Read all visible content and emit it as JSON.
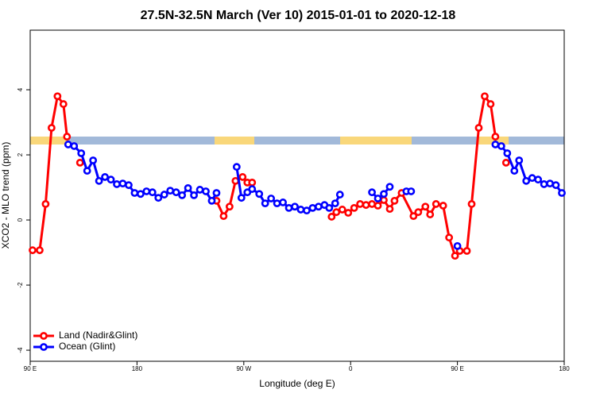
{
  "chart_data": {
    "type": "line",
    "title": "27.5N-32.5N March (Ver 10)   2015-01-01 to 2020-12-18",
    "x_label": "Longitude (deg E)",
    "y_label": "XCO2 - MLO trend (ppm)",
    "xlim": [
      90,
      540
    ],
    "xticks": [
      {
        "value": 90,
        "label": "90 E"
      },
      180,
      {
        "value": 270,
        "label": "90 W"
      },
      {
        "value": 360,
        "label": "0"
      },
      {
        "value": 450,
        "label": "90 E"
      },
      {
        "value": 540,
        "label": "180"
      }
    ],
    "ylim": [
      -4.34,
      5.83
    ],
    "yticks": [
      -4,
      -2,
      0,
      2,
      4
    ],
    "legend": "bottom-left",
    "series": [
      {
        "name": "Land (Nadir&Glint)",
        "color": "#ff0000",
        "x": [
          92,
          98,
          103,
          108,
          113,
          118,
          121,
          126,
          132,
          190,
          247,
          253,
          258,
          263,
          269,
          273,
          277,
          310,
          344,
          348,
          353,
          358,
          363,
          368,
          373,
          378,
          383,
          388,
          393,
          397,
          403,
          413,
          417,
          423,
          427,
          432,
          438,
          443,
          448,
          452,
          458,
          462,
          468,
          473,
          478,
          482,
          486,
          491
        ],
        "values": [
          -0.93,
          -0.93,
          0.49,
          2.83,
          3.8,
          3.56,
          2.56,
          null,
          1.76,
          null,
          0.59,
          0.12,
          0.41,
          1.2,
          1.32,
          1.15,
          1.15,
          null,
          0.1,
          0.24,
          0.32,
          0.22,
          0.37,
          0.49,
          0.46,
          0.49,
          0.44,
          0.61,
          0.34,
          0.59,
          0.83,
          0.12,
          0.24,
          0.41,
          0.17,
          0.49,
          0.44,
          -0.54,
          -1.1,
          -0.95,
          -0.95,
          0.49,
          2.83,
          3.8,
          3.56,
          2.56,
          null,
          1.76
        ]
      },
      {
        "name": "Ocean (Glint)",
        "color": "#0000ff",
        "x": [
          122,
          127,
          133,
          138,
          143,
          148,
          153,
          158,
          163,
          168,
          173,
          178,
          183,
          188,
          193,
          198,
          203,
          208,
          213,
          218,
          223,
          228,
          233,
          238,
          243,
          247,
          255,
          264,
          268,
          273,
          277,
          283,
          288,
          293,
          298,
          303,
          308,
          313,
          318,
          323,
          328,
          333,
          338,
          342,
          347,
          351,
          365,
          378,
          383,
          388,
          393,
          400,
          407,
          411,
          430,
          450,
          466,
          482,
          487,
          492,
          498,
          502,
          508,
          513,
          518,
          523,
          528,
          533,
          538
        ],
        "values": [
          2.32,
          2.27,
          2.05,
          1.51,
          1.83,
          1.2,
          1.32,
          1.24,
          1.1,
          1.12,
          1.07,
          0.83,
          0.8,
          0.88,
          0.85,
          0.68,
          0.78,
          0.9,
          0.85,
          0.76,
          0.98,
          0.76,
          0.93,
          0.88,
          0.59,
          0.83,
          null,
          1.63,
          0.68,
          0.85,
          0.95,
          0.8,
          0.51,
          0.66,
          0.51,
          0.54,
          0.37,
          0.41,
          0.32,
          0.29,
          0.37,
          0.41,
          0.46,
          0.37,
          0.51,
          0.78,
          null,
          0.85,
          0.66,
          0.8,
          1.02,
          null,
          0.88,
          0.88,
          null,
          -0.8,
          null,
          2.32,
          2.27,
          2.05,
          1.51,
          1.83,
          1.2,
          1.29,
          1.24,
          1.1,
          1.12,
          1.07,
          0.83
        ]
      }
    ]
  }
}
